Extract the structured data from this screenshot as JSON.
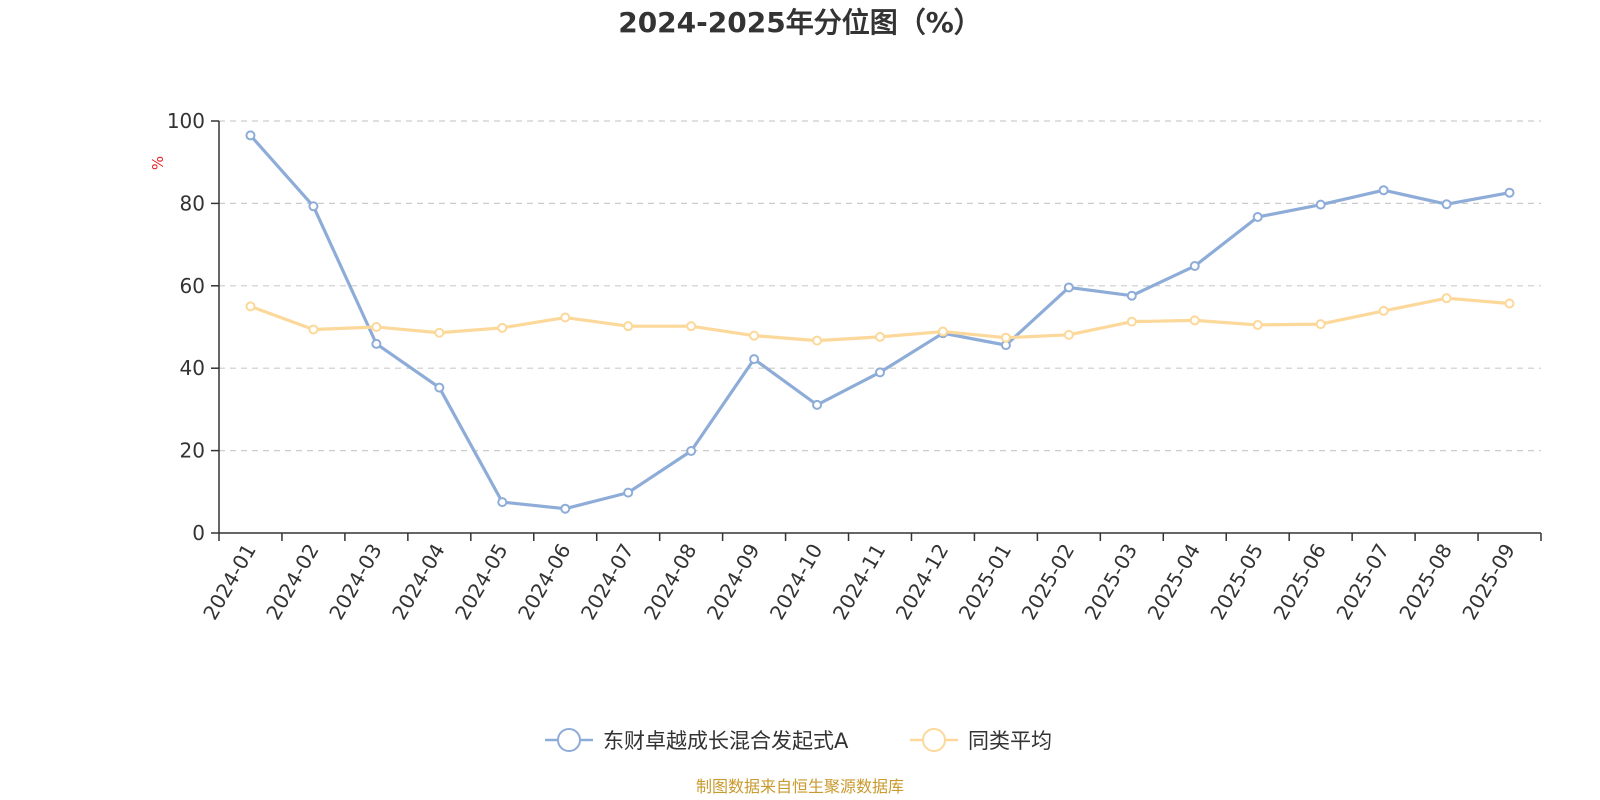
{
  "chart_data": {
    "type": "line",
    "title": "2024-2025年分位图（%）",
    "ylabel": "%",
    "ylim": [
      0,
      100
    ],
    "yticks": [
      0,
      20,
      40,
      60,
      80,
      100
    ],
    "grid": true,
    "legend_position": "bottom",
    "categories": [
      "2024-01",
      "2024-02",
      "2024-03",
      "2024-04",
      "2024-05",
      "2024-06",
      "2024-07",
      "2024-08",
      "2024-09",
      "2024-10",
      "2024-11",
      "2024-12",
      "2025-01",
      "2025-02",
      "2025-03",
      "2025-04",
      "2025-05",
      "2025-06",
      "2025-07",
      "2025-08",
      "2025-09"
    ],
    "series": [
      {
        "name": "东财卓越成长混合发起式A",
        "color": "#8eacd8",
        "values": [
          96.5,
          79.3,
          45.9,
          35.3,
          7.5,
          5.9,
          9.8,
          19.9,
          42.2,
          31.1,
          39.0,
          48.5,
          45.6,
          59.6,
          57.6,
          64.8,
          76.7,
          79.7,
          83.2,
          79.8,
          82.6
        ]
      },
      {
        "name": "同类平均",
        "color": "#fcd89a",
        "values": [
          55.0,
          49.4,
          50.0,
          48.6,
          49.8,
          52.3,
          50.2,
          50.2,
          47.9,
          46.7,
          47.6,
          48.9,
          47.4,
          48.1,
          51.3,
          51.6,
          50.5,
          50.7,
          53.9,
          57.0,
          55.7
        ]
      }
    ]
  },
  "source": {
    "text": "制图数据来自恒生聚源数据库",
    "color": "#c99a2e"
  },
  "colors": {
    "axis": "#333333",
    "grid": "#cccccc",
    "unit": "#e8262a"
  }
}
